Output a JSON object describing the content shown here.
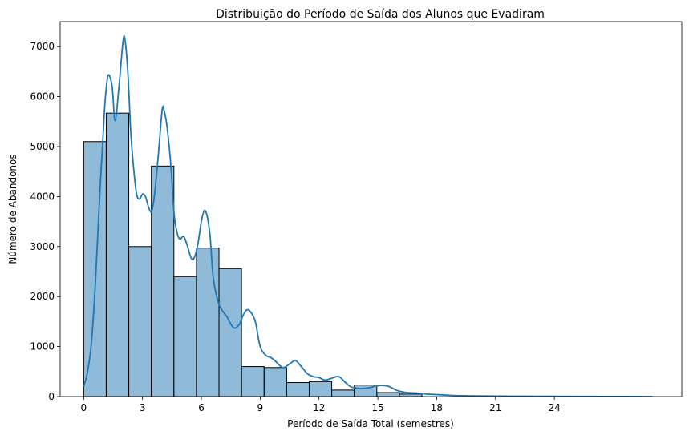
{
  "chart_data": {
    "type": "bar",
    "title": "Distribuição do Período de Saída dos Alunos que Evadiram",
    "xlabel": "Período de Saída Total (semestres)",
    "ylabel": "Número de Abandonos",
    "xlim": [
      -1.2,
      30.5
    ],
    "ylim": [
      0,
      7500
    ],
    "xticks": [
      0,
      3,
      6,
      9,
      12,
      15,
      18,
      21,
      24
    ],
    "yticks": [
      0,
      1000,
      2000,
      3000,
      4000,
      5000,
      6000,
      7000
    ],
    "bin_edges": [
      0,
      1.15,
      2.3,
      3.45,
      4.6,
      5.75,
      6.9,
      8.05,
      9.2,
      10.35,
      11.5,
      12.65,
      13.8,
      14.95,
      16.1,
      17.25
    ],
    "values": [
      5100,
      5670,
      3000,
      4610,
      2400,
      2970,
      2560,
      600,
      580,
      280,
      300,
      130,
      230,
      80,
      50
    ],
    "kde": {
      "x": [
        0,
        0.2,
        0.4,
        0.6,
        0.8,
        1.0,
        1.1,
        1.25,
        1.45,
        1.6,
        1.8,
        2.0,
        2.1,
        2.25,
        2.4,
        2.55,
        2.7,
        2.85,
        3.0,
        3.15,
        3.3,
        3.45,
        3.6,
        3.8,
        4.0,
        4.1,
        4.25,
        4.45,
        4.6,
        4.75,
        4.9,
        5.1,
        5.3,
        5.45,
        5.6,
        5.8,
        6.0,
        6.15,
        6.3,
        6.45,
        6.6,
        6.85,
        7.1,
        7.3,
        7.5,
        7.7,
        7.95,
        8.1,
        8.3,
        8.5,
        8.75,
        9.0,
        9.3,
        9.55,
        9.8,
        10.0,
        10.2,
        10.5,
        10.8,
        11.1,
        11.4,
        11.7,
        12.0,
        12.3,
        12.6,
        13.0,
        13.3,
        13.6,
        13.9,
        14.2,
        14.6,
        15.0,
        15.5,
        16.0,
        16.5,
        17.0,
        17.5,
        18.0,
        18.5,
        19.0,
        20,
        21,
        22,
        23,
        24,
        25,
        26,
        27,
        28,
        29
      ],
      "y": [
        200,
        500,
        1100,
        2300,
        3900,
        5300,
        5950,
        6430,
        6200,
        5520,
        6200,
        7080,
        7150,
        6500,
        5300,
        4550,
        4050,
        3950,
        4050,
        4000,
        3800,
        3700,
        4000,
        4800,
        5730,
        5720,
        5400,
        4600,
        3700,
        3300,
        3150,
        3200,
        3000,
        2800,
        2750,
        3000,
        3500,
        3720,
        3600,
        3200,
        2400,
        1900,
        1700,
        1600,
        1450,
        1370,
        1450,
        1600,
        1730,
        1700,
        1500,
        1000,
        820,
        780,
        700,
        620,
        580,
        650,
        720,
        600,
        460,
        400,
        380,
        330,
        360,
        400,
        300,
        200,
        170,
        160,
        180,
        220,
        210,
        120,
        80,
        70,
        50,
        40,
        30,
        20,
        15,
        10,
        8,
        6,
        5,
        4,
        3,
        2,
        1,
        0
      ]
    }
  }
}
